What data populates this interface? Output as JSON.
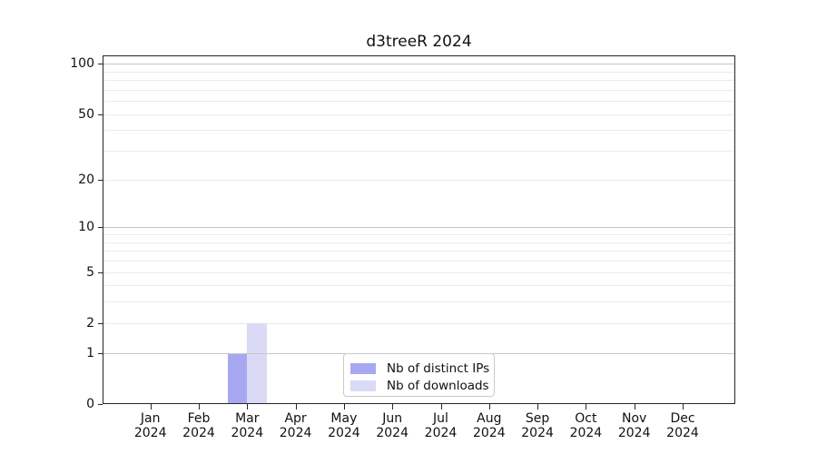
{
  "chart_data": {
    "type": "bar",
    "title": "d3treeR 2024",
    "x_categories": [
      "Jan",
      "Feb",
      "Mar",
      "Apr",
      "May",
      "Jun",
      "Jul",
      "Aug",
      "Sep",
      "Oct",
      "Nov",
      "Dec"
    ],
    "x_year": "2024",
    "series": [
      {
        "name": "Nb of distinct IPs",
        "color": "#a8a8f2",
        "values": [
          0,
          0,
          1,
          0,
          0,
          0,
          0,
          0,
          0,
          0,
          0,
          0
        ]
      },
      {
        "name": "Nb of downloads",
        "color": "#dadaf7",
        "values": [
          0,
          0,
          2,
          0,
          0,
          0,
          0,
          0,
          0,
          0,
          0,
          0
        ]
      }
    ],
    "y_axis": {
      "scale": "log1p",
      "tick_values": [
        0,
        1,
        2,
        5,
        10,
        20,
        50,
        100
      ],
      "major_grid_values": [
        1,
        10,
        100
      ],
      "minor_grid_values": [
        2,
        3,
        4,
        5,
        6,
        7,
        8,
        9,
        20,
        30,
        40,
        50,
        60,
        70,
        80,
        90
      ],
      "ymax": 112
    },
    "legend": {
      "position": "lower center"
    },
    "colors": {
      "major_grid": "#c6c6c6",
      "minor_grid": "#ebebeb",
      "spine": "#262626",
      "text": "#111111"
    }
  }
}
